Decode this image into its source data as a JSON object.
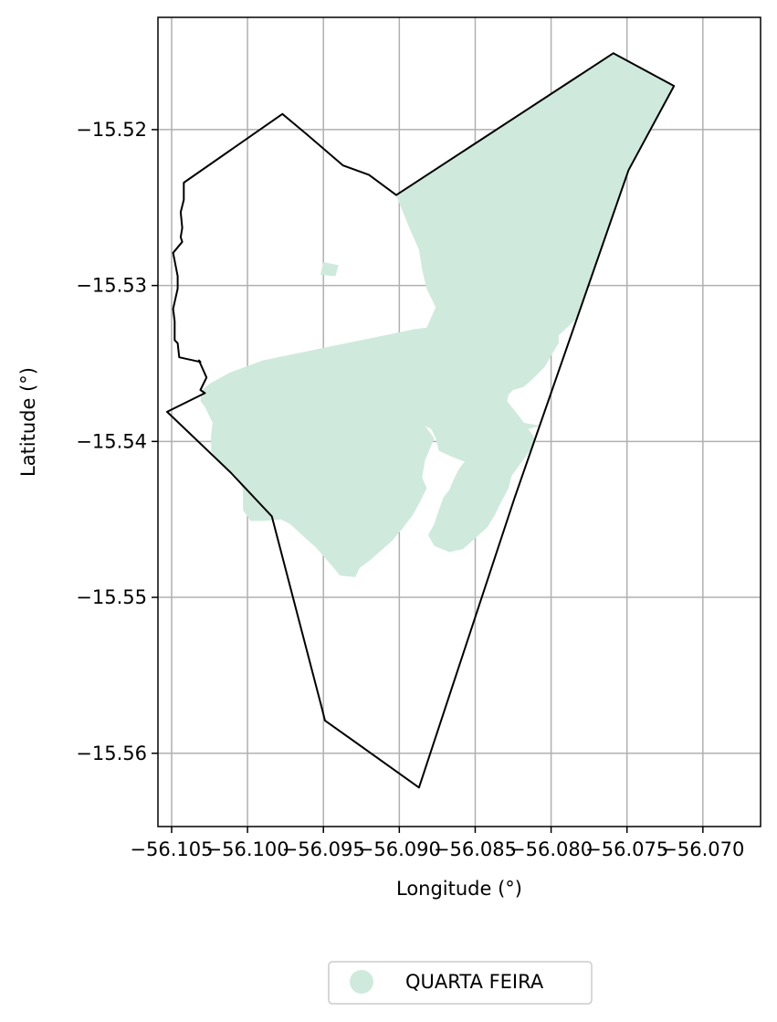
{
  "chart_data": {
    "type": "map",
    "xlabel": "Longitude (°)",
    "ylabel": "Latitude (°)",
    "xlim": [
      -56.1059,
      -56.0662
    ],
    "ylim": [
      -15.5647,
      -15.5128
    ],
    "grid": true,
    "x_ticks": [
      {
        "value": -56.105,
        "label": "−56.105"
      },
      {
        "value": -56.1,
        "label": "−56.100"
      },
      {
        "value": -56.095,
        "label": "−56.095"
      },
      {
        "value": -56.09,
        "label": "−56.090"
      },
      {
        "value": -56.085,
        "label": "−56.085"
      },
      {
        "value": -56.08,
        "label": "−56.080"
      },
      {
        "value": -56.075,
        "label": "−56.075"
      },
      {
        "value": -56.07,
        "label": "−56.070"
      }
    ],
    "y_ticks": [
      {
        "value": -15.52,
        "label": "−15.52"
      },
      {
        "value": -15.53,
        "label": "−15.53"
      },
      {
        "value": -15.54,
        "label": "−15.54"
      },
      {
        "value": -15.55,
        "label": "−15.55"
      },
      {
        "value": -15.56,
        "label": "−15.56"
      }
    ],
    "boundary": {
      "stroke": "#000000",
      "coordinates": [
        [
          -56.0902,
          -15.5242
        ],
        [
          -56.0759,
          -15.5151
        ],
        [
          -56.0719,
          -15.5172
        ],
        [
          -56.0749,
          -15.5226
        ],
        [
          -56.0824,
          -15.5436
        ],
        [
          -56.0887,
          -15.5622
        ],
        [
          -56.0949,
          -15.5579
        ],
        [
          -56.0951,
          -15.5571
        ],
        [
          -56.0984,
          -15.5448
        ],
        [
          -56.1011,
          -15.542
        ],
        [
          -56.1053,
          -15.5381
        ],
        [
          -56.1028,
          -15.5369
        ],
        [
          -56.1031,
          -15.5367
        ],
        [
          -56.1027,
          -15.5359
        ],
        [
          -56.1032,
          -15.5348
        ],
        [
          -56.1031,
          -15.5349
        ],
        [
          -56.1045,
          -15.5346
        ],
        [
          -56.1046,
          -15.5337
        ],
        [
          -56.1048,
          -15.5335
        ],
        [
          -56.1048,
          -15.5323
        ],
        [
          -56.1049,
          -15.5315
        ],
        [
          -56.1046,
          -15.5302
        ],
        [
          -56.1046,
          -15.5294
        ],
        [
          -56.1049,
          -15.5279
        ],
        [
          -56.1043,
          -15.5272
        ],
        [
          -56.1044,
          -15.5269
        ],
        [
          -56.1043,
          -15.5263
        ],
        [
          -56.1044,
          -15.5253
        ],
        [
          -56.1042,
          -15.5245
        ],
        [
          -56.1042,
          -15.5234
        ],
        [
          -56.0977,
          -15.519
        ],
        [
          -56.0961,
          -15.5203
        ],
        [
          -56.0937,
          -15.5223
        ],
        [
          -56.092,
          -15.5229
        ],
        [
          -56.0902,
          -15.5242
        ]
      ]
    },
    "regions": [
      {
        "name": "QUARTA FEIRA",
        "color": "#cfeadd",
        "polygons": [
          [
            [
              -56.0902,
              -15.5242
            ],
            [
              -56.0759,
              -15.5151
            ],
            [
              -56.0719,
              -15.5172
            ],
            [
              -56.0749,
              -15.5226
            ],
            [
              -56.0768,
              -15.5278
            ],
            [
              -56.0784,
              -15.5322
            ],
            [
              -56.0795,
              -15.5332
            ],
            [
              -56.0795,
              -15.5337
            ],
            [
              -56.08,
              -15.5345
            ],
            [
              -56.0804,
              -15.5352
            ],
            [
              -56.0811,
              -15.5359
            ],
            [
              -56.0818,
              -15.5365
            ],
            [
              -56.0825,
              -15.5367
            ],
            [
              -56.0828,
              -15.537
            ],
            [
              -56.0829,
              -15.5374
            ],
            [
              -56.0821,
              -15.5384
            ],
            [
              -56.0818,
              -15.5388
            ],
            [
              -56.0807,
              -15.539
            ],
            [
              -56.0815,
              -15.5392
            ],
            [
              -56.0812,
              -15.5396
            ],
            [
              -56.081,
              -15.54
            ],
            [
              -56.0814,
              -15.5406
            ],
            [
              -56.082,
              -15.5414
            ],
            [
              -56.0826,
              -15.5422
            ],
            [
              -56.0828,
              -15.543
            ],
            [
              -56.0833,
              -15.5439
            ],
            [
              -56.0837,
              -15.5447
            ],
            [
              -56.0842,
              -15.5455
            ],
            [
              -56.0851,
              -15.5463
            ],
            [
              -56.0858,
              -15.5469
            ],
            [
              -56.0867,
              -15.5471
            ],
            [
              -56.0877,
              -15.5467
            ],
            [
              -56.0881,
              -15.546
            ],
            [
              -56.0877,
              -15.5453
            ],
            [
              -56.0874,
              -15.5444
            ],
            [
              -56.0871,
              -15.5436
            ],
            [
              -56.0867,
              -15.5431
            ],
            [
              -56.0864,
              -15.5424
            ],
            [
              -56.0861,
              -15.5418
            ],
            [
              -56.0857,
              -15.5413
            ],
            [
              -56.0865,
              -15.541
            ],
            [
              -56.0874,
              -15.5406
            ],
            [
              -56.0876,
              -15.5398
            ],
            [
              -56.0879,
              -15.5392
            ],
            [
              -56.0883,
              -15.539
            ],
            [
              -56.0877,
              -15.5398
            ],
            [
              -56.0883,
              -15.5412
            ],
            [
              -56.0885,
              -15.5423
            ],
            [
              -56.0882,
              -15.543
            ],
            [
              -56.0886,
              -15.5438
            ],
            [
              -56.0891,
              -15.5447
            ],
            [
              -56.0898,
              -15.5456
            ],
            [
              -56.0905,
              -15.5464
            ],
            [
              -56.0912,
              -15.547
            ],
            [
              -56.0919,
              -15.5476
            ],
            [
              -56.0926,
              -15.5481
            ],
            [
              -56.0929,
              -15.5487
            ],
            [
              -56.0939,
              -15.5486
            ],
            [
              -56.0946,
              -15.5478
            ],
            [
              -56.0955,
              -15.5468
            ],
            [
              -56.0963,
              -15.5461
            ],
            [
              -56.0972,
              -15.5453
            ],
            [
              -56.0978,
              -15.545
            ],
            [
              -56.099,
              -15.5451
            ],
            [
              -56.0998,
              -15.5451
            ],
            [
              -56.1003,
              -15.5444
            ],
            [
              -56.1003,
              -15.5431
            ],
            [
              -56.1007,
              -15.5423
            ],
            [
              -56.1012,
              -15.5418
            ],
            [
              -56.102,
              -15.5412
            ],
            [
              -56.1024,
              -15.5406
            ],
            [
              -56.1024,
              -15.5396
            ],
            [
              -56.1023,
              -15.5388
            ],
            [
              -56.1026,
              -15.5382
            ],
            [
              -56.1028,
              -15.5378
            ],
            [
              -56.1031,
              -15.5374
            ],
            [
              -56.103,
              -15.5367
            ],
            [
              -56.1025,
              -15.5363
            ],
            [
              -56.1012,
              -15.5356
            ],
            [
              -56.099,
              -15.5348
            ],
            [
              -56.0955,
              -15.5341
            ],
            [
              -56.092,
              -15.5334
            ],
            [
              -56.089,
              -15.5328
            ],
            [
              -56.0882,
              -15.5327
            ],
            [
              -56.0876,
              -15.5314
            ],
            [
              -56.0882,
              -15.5302
            ],
            [
              -56.0885,
              -15.529
            ],
            [
              -56.0887,
              -15.5277
            ],
            [
              -56.0893,
              -15.5264
            ],
            [
              -56.0898,
              -15.5252
            ],
            [
              -56.0902,
              -15.5242
            ]
          ],
          [
            [
              -56.095,
              -15.5285
            ],
            [
              -56.094,
              -15.5287
            ],
            [
              -56.0942,
              -15.5294
            ],
            [
              -56.0952,
              -15.5293
            ],
            [
              -56.095,
              -15.5285
            ]
          ]
        ]
      }
    ],
    "legend": {
      "placement": "bottom-center",
      "entries": [
        {
          "label": "QUARTA FEIRA",
          "color": "#cfeadd"
        }
      ]
    }
  }
}
